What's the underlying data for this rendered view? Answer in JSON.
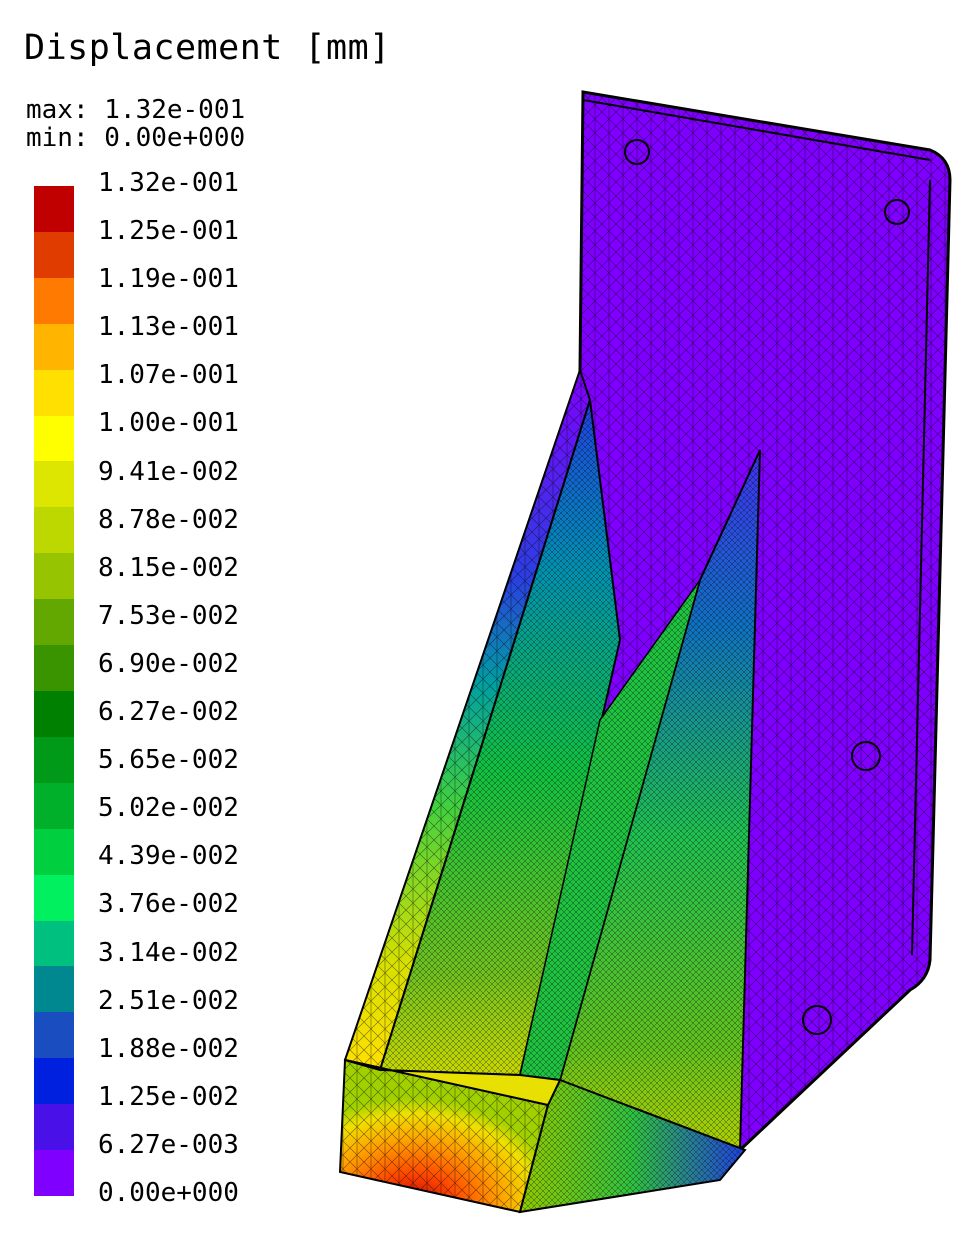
{
  "title": "Displacement [mm]",
  "max_text": "max: 1.32e-001",
  "min_text": "min: 0.00e+000",
  "legend": {
    "labels": [
      "1.32e-001",
      "1.25e-001",
      "1.19e-001",
      "1.13e-001",
      "1.07e-001",
      "1.00e-001",
      "9.41e-002",
      "8.78e-002",
      "8.15e-002",
      "7.53e-002",
      "6.90e-002",
      "6.27e-002",
      "5.65e-002",
      "5.02e-002",
      "4.39e-002",
      "3.76e-002",
      "3.14e-002",
      "2.51e-002",
      "1.88e-002",
      "1.25e-002",
      "6.27e-003",
      "0.00e+000"
    ],
    "colors": [
      "#c00000",
      "#e03c00",
      "#ff7a00",
      "#ffb400",
      "#ffe000",
      "#ffff00",
      "#dde600",
      "#bcd800",
      "#96c400",
      "#62a800",
      "#3a9400",
      "#008000",
      "#009a18",
      "#00b02a",
      "#00d040",
      "#00f060",
      "#00c080",
      "#008890",
      "#1a4ec0",
      "#0020e0",
      "#4a10e8",
      "#8000ff"
    ]
  },
  "model": {
    "colors": {
      "purple": "#8000ff",
      "blue": "#2a40e0",
      "teal": "#00a0a0",
      "green": "#20d040",
      "yellow": "#ffe000",
      "orange": "#ff7000",
      "red": "#d00000"
    }
  }
}
